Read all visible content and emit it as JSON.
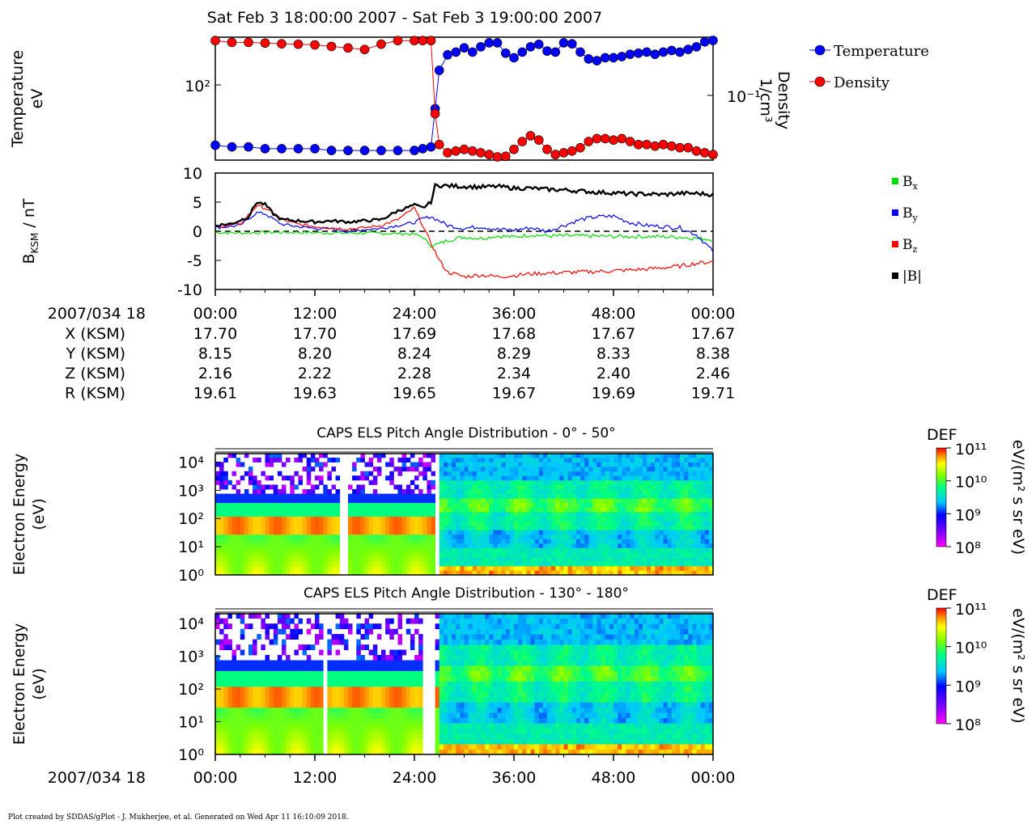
{
  "title": "Sat Feb 3 18:00:00 2007 - Sat Feb 3 19:00:00 2007",
  "footer": "Plot created by SDDAS/gPlot - J. Mukherjee, et al.  Generated on Wed Apr 11 16:10:09 2018.",
  "time_axis": {
    "start_label": "2007/034 18",
    "ticks": [
      "00:00",
      "12:00",
      "24:00",
      "36:00",
      "48:00",
      "00:00"
    ],
    "tick_minutes": [
      0,
      12,
      24,
      36,
      48,
      60
    ]
  },
  "ephemeris": {
    "rows": [
      {
        "label": "X (KSM)",
        "values": [
          "17.70",
          "17.70",
          "17.69",
          "17.68",
          "17.67",
          "17.67"
        ]
      },
      {
        "label": "Y (KSM)",
        "values": [
          "8.15",
          "8.20",
          "8.24",
          "8.29",
          "8.33",
          "8.38"
        ]
      },
      {
        "label": "Z (KSM)",
        "values": [
          "2.16",
          "2.22",
          "2.28",
          "2.34",
          "2.40",
          "2.46"
        ]
      },
      {
        "label": "R (KSM)",
        "values": [
          "19.61",
          "19.63",
          "19.65",
          "19.67",
          "19.69",
          "19.71"
        ]
      }
    ]
  },
  "colorbar": {
    "label": "DEF",
    "units": "eV/(m² s sr eV)",
    "tick_exponents": [
      11,
      10,
      9,
      8
    ]
  },
  "chart_data": [
    {
      "type": "line",
      "ylabel_left": [
        "Temperature",
        "eV"
      ],
      "ylabel_right": [
        "Density",
        "1/cm³"
      ],
      "left_tick": "10²",
      "right_tick": "10⁻¹",
      "yscale": "log",
      "x_range_minutes": [
        0,
        60
      ],
      "legend": {
        "placement": "right",
        "entries": [
          "Temperature",
          "Density"
        ]
      },
      "series": [
        {
          "name": "Temperature",
          "color": "#0000ff",
          "axis": "left",
          "units": "eV",
          "x": [
            0,
            2,
            4,
            6,
            8,
            10,
            12,
            14,
            16,
            18,
            20,
            22,
            24,
            25,
            26,
            26.5,
            27,
            28,
            29,
            30,
            31,
            32,
            33,
            34,
            35,
            36,
            37,
            38,
            39,
            40,
            41,
            42,
            43,
            44,
            45,
            46,
            47,
            48,
            49,
            50,
            51,
            52,
            53,
            54,
            55,
            56,
            57,
            58,
            59,
            60
          ],
          "y": [
            48,
            47,
            47,
            46,
            46,
            46,
            46,
            45,
            45,
            45,
            45,
            45,
            45,
            46,
            47,
            75,
            120,
            145,
            150,
            158,
            150,
            160,
            168,
            168,
            148,
            140,
            150,
            160,
            165,
            152,
            150,
            168,
            166,
            150,
            138,
            135,
            140,
            140,
            142,
            146,
            148,
            150,
            146,
            150,
            153,
            150,
            155,
            160,
            170,
            175
          ]
        },
        {
          "name": "Density",
          "color": "#ff0000",
          "axis": "right",
          "units": "1/cm³",
          "x": [
            0,
            2,
            4,
            6,
            8,
            10,
            12,
            14,
            16,
            18,
            20,
            22,
            24,
            25,
            26,
            26.5,
            27,
            28,
            29,
            30,
            31,
            32,
            33,
            34,
            35,
            36,
            37,
            38,
            39,
            40,
            41,
            42,
            43,
            44,
            45,
            46,
            47,
            48,
            49,
            50,
            51,
            52,
            53,
            54,
            55,
            56,
            57,
            58,
            59,
            60
          ],
          "y": [
            0.2,
            0.195,
            0.195,
            0.193,
            0.191,
            0.19,
            0.188,
            0.184,
            0.18,
            0.176,
            0.19,
            0.2,
            0.2,
            0.2,
            0.2,
            0.07,
            0.045,
            0.04,
            0.041,
            0.042,
            0.041,
            0.04,
            0.039,
            0.037,
            0.038,
            0.042,
            0.047,
            0.051,
            0.048,
            0.042,
            0.039,
            0.04,
            0.041,
            0.043,
            0.047,
            0.049,
            0.049,
            0.048,
            0.049,
            0.047,
            0.045,
            0.045,
            0.044,
            0.045,
            0.044,
            0.043,
            0.043,
            0.041,
            0.04,
            0.039
          ]
        }
      ]
    },
    {
      "type": "line",
      "ylabel": "B_KSM / nT",
      "ylabel_main": "B",
      "ylabel_sub": "KSM",
      "ylabel_tail": " / nT",
      "ylim": [
        -10,
        10
      ],
      "yticks": [
        10,
        5,
        0,
        -5,
        -10
      ],
      "x_range_minutes": [
        0,
        60
      ],
      "zero_line": "dashed",
      "legend": {
        "placement": "right",
        "entries": [
          "Bx",
          "By",
          "Bz",
          "|B|"
        ]
      },
      "series": [
        {
          "name": "Bx",
          "name_main": "B",
          "name_sub": "x",
          "color": "#00dd00",
          "x": [
            0,
            3,
            6,
            10,
            14,
            18,
            22,
            24,
            25,
            26,
            27,
            28,
            30,
            32,
            34,
            36,
            38,
            40,
            44,
            48,
            52,
            56,
            58,
            60
          ],
          "y": [
            -0.2,
            -0.3,
            -0.2,
            -0.2,
            -0.3,
            -0.3,
            -0.4,
            -0.5,
            -1.0,
            -2.5,
            -2.2,
            -1.5,
            -1.0,
            -1.2,
            -0.8,
            -1.0,
            -0.6,
            -0.8,
            -0.8,
            -0.9,
            -0.9,
            -1.0,
            -1.2,
            -1.4
          ]
        },
        {
          "name": "By",
          "name_main": "B",
          "name_sub": "y",
          "color": "#0000ff",
          "x": [
            0,
            3,
            5,
            6,
            8,
            10,
            12,
            14,
            16,
            18,
            20,
            22,
            24,
            25,
            26,
            27,
            28,
            30,
            32,
            34,
            36,
            38,
            40,
            42,
            44,
            46,
            48,
            50,
            52,
            54,
            56,
            58,
            59,
            60
          ],
          "y": [
            0.6,
            1.0,
            3.2,
            3.0,
            1.2,
            0.8,
            0.5,
            0.4,
            0.0,
            0.3,
            0.5,
            1.0,
            1.5,
            2.2,
            2.5,
            1.8,
            1.0,
            0.5,
            0.8,
            0.3,
            0.2,
            0.6,
            0.0,
            1.0,
            2.0,
            2.5,
            2.6,
            1.5,
            1.0,
            0.8,
            0.6,
            -0.6,
            -2.0,
            -3.5
          ]
        },
        {
          "name": "Bz",
          "name_main": "B",
          "name_sub": "z",
          "color": "#ff0000",
          "x": [
            0,
            3,
            5,
            6,
            8,
            10,
            12,
            14,
            16,
            18,
            20,
            22,
            24,
            25,
            26,
            27,
            28,
            30,
            32,
            34,
            36,
            38,
            40,
            44,
            48,
            52,
            56,
            58,
            60
          ],
          "y": [
            0.8,
            1.2,
            4.4,
            4.0,
            2.0,
            1.2,
            0.8,
            0.6,
            0.4,
            0.6,
            1.0,
            2.0,
            4.0,
            1.0,
            -2.0,
            -5.0,
            -7.0,
            -7.8,
            -7.5,
            -7.8,
            -7.6,
            -7.3,
            -7.2,
            -7.0,
            -6.8,
            -6.5,
            -6.0,
            -5.5,
            -5.2
          ]
        },
        {
          "name": "|B|",
          "name_main": "|B|",
          "name_sub": "",
          "color": "#000000",
          "x": [
            0,
            2,
            4,
            5,
            6,
            7,
            8,
            10,
            12,
            14,
            16,
            18,
            20,
            22,
            23,
            24,
            25,
            26,
            26.5,
            27,
            28,
            30,
            32,
            34,
            36,
            38,
            40,
            42,
            44,
            46,
            48,
            50,
            52,
            54,
            56,
            58,
            60
          ],
          "y": [
            1.0,
            1.3,
            2.5,
            5.0,
            4.6,
            3.0,
            2.0,
            1.8,
            1.6,
            1.8,
            1.6,
            1.8,
            2.0,
            3.5,
            4.0,
            4.5,
            4.0,
            5.0,
            7.8,
            7.9,
            7.8,
            7.7,
            7.6,
            7.7,
            7.4,
            7.4,
            7.2,
            7.1,
            6.9,
            6.7,
            6.6,
            6.4,
            6.4,
            6.3,
            6.5,
            6.5,
            6.3
          ]
        }
      ]
    },
    {
      "type": "heatmap",
      "title": "CAPS ELS Pitch Angle Distribution - 0° - 50°",
      "ylabel": [
        "Electron Energy",
        "(eV)"
      ],
      "yscale": "log",
      "ylim": [
        1,
        20000
      ],
      "ytick_exponents": [
        4,
        3,
        2,
        1,
        0
      ],
      "x_range_minutes": [
        0,
        60
      ],
      "data_gaps_minutes": [
        [
          14.8,
          16.0
        ],
        [
          26.4,
          26.9
        ]
      ],
      "regime_change_minutes": 26.5,
      "color_range_exponents": [
        8,
        11
      ]
    },
    {
      "type": "heatmap",
      "title": "CAPS ELS Pitch Angle Distribution - 130° - 180°",
      "ylabel": [
        "Electron Energy",
        "(eV)"
      ],
      "yscale": "log",
      "ylim": [
        1,
        20000
      ],
      "ytick_exponents": [
        4,
        3,
        2,
        1,
        0
      ],
      "x_range_minutes": [
        0,
        60
      ],
      "data_gaps_minutes": [
        [
          13.0,
          13.4
        ],
        [
          24.8,
          26.6
        ]
      ],
      "regime_change_minutes": 26.6,
      "color_range_exponents": [
        8,
        11
      ]
    }
  ]
}
